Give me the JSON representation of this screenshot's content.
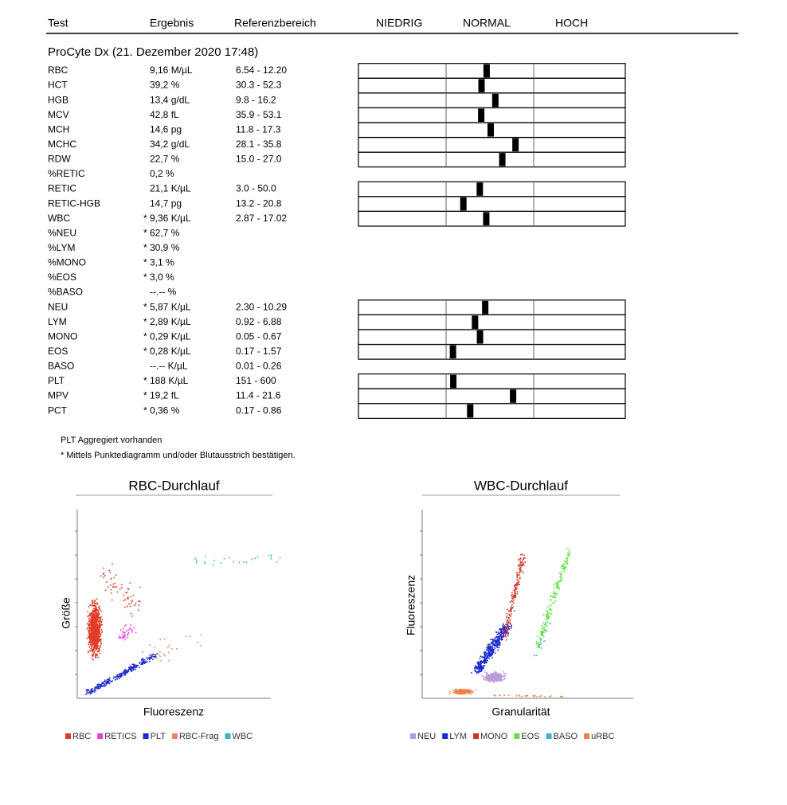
{
  "header": {
    "columns": [
      "Test",
      "Ergebnis",
      "Referenzbereich",
      "NIEDRIG",
      "NORMAL",
      "HOCH"
    ]
  },
  "section": "ProCyte Dx (21. Dezember 2020 17:48)",
  "rows": [
    {
      "test": "RBC",
      "result": "9,16 M/µL",
      "range": "6.54 - 12.20"
    },
    {
      "test": "HCT",
      "result": "39,2 %",
      "range": "30.3 - 52.3"
    },
    {
      "test": "HGB",
      "result": "13,4 g/dL",
      "range": "9.8 - 16.2"
    },
    {
      "test": "MCV",
      "result": "42,8 fL",
      "range": "35.9 - 53.1"
    },
    {
      "test": "MCH",
      "result": "14,6 pg",
      "range": "11.8 - 17.3"
    },
    {
      "test": "MCHC",
      "result": "34,2 g/dL",
      "range": "28.1 - 35.8"
    },
    {
      "test": "RDW",
      "result": "22,7 %",
      "range": "15.0 - 27.0"
    },
    {
      "test": "%RETIC",
      "result": "0,2 %"
    },
    {
      "test": "RETIC",
      "result": "21,1 K/µL",
      "range": "3.0 - 50.0"
    },
    {
      "test": "RETIC-HGB",
      "result": "14,7 pg",
      "range": "13.2 - 20.8"
    },
    {
      "test": "WBC",
      "result": "* 9,36 K/µL",
      "range": "2.87 - 17.02"
    },
    {
      "test": "%NEU",
      "result": "* 62,7 %"
    },
    {
      "test": "%LYM",
      "result": "* 30,9 %"
    },
    {
      "test": "%MONO",
      "result": "* 3,1 %"
    },
    {
      "test": "%EOS",
      "result": "* 3,0 %"
    },
    {
      "test": "%BASO",
      "result": "--.-- %"
    },
    {
      "test": "NEU",
      "result": "* 5,87 K/µL",
      "range": "2.30 - 10.29"
    },
    {
      "test": "LYM",
      "result": "* 2,89 K/µL",
      "range": "0.92 - 6.88"
    },
    {
      "test": "MONO",
      "result": "* 0,29 K/µL",
      "range": "0.05 - 0.67"
    },
    {
      "test": "EOS",
      "result": "* 0,28 K/µL",
      "range": "0.17 - 1.57"
    },
    {
      "test": "BASO",
      "result": "--.-- K/µL",
      "range": "0.01 - 0.26"
    },
    {
      "test": "PLT",
      "result": "* 188 K/µL",
      "range": "151 - 600"
    },
    {
      "test": "MPV",
      "result": "* 19,2 fL",
      "range": "11.4 - 21.6"
    },
    {
      "test": "PCT",
      "result": "* 0,36 %",
      "range": "0.17 - 0.86"
    }
  ],
  "notes": [
    "PLT Aggregiert vorhanden",
    "* Mittels Punktediagramm und/oder Blutausstrich bestätigen."
  ],
  "plots": [
    {
      "title": "RBC-Durchlauf",
      "y_label": "Größe",
      "x_label": "Fluoreszenz",
      "legend": [
        {
          "name": "RBC",
          "color": "#e03c28"
        },
        {
          "name": "RETICS",
          "color": "#e040e0"
        },
        {
          "name": "PLT",
          "color": "#1b2ad0"
        },
        {
          "name": "RBC-Frag",
          "color": "#f08070"
        },
        {
          "name": "WBC",
          "color": "#3cb8b8"
        }
      ]
    },
    {
      "title": "WBC-Durchlauf",
      "y_label": "Fluoreszenz",
      "x_label": "Granularität",
      "legend": [
        {
          "name": "NEU",
          "color": "#b89ad8"
        },
        {
          "name": "LYM",
          "color": "#1b2ad0"
        },
        {
          "name": "MONO",
          "color": "#d03020"
        },
        {
          "name": "EOS",
          "color": "#60e040"
        },
        {
          "name": "BASO",
          "color": "#3cb8c8"
        },
        {
          "name": "uRBC",
          "color": "#f08040"
        }
      ]
    }
  ]
}
